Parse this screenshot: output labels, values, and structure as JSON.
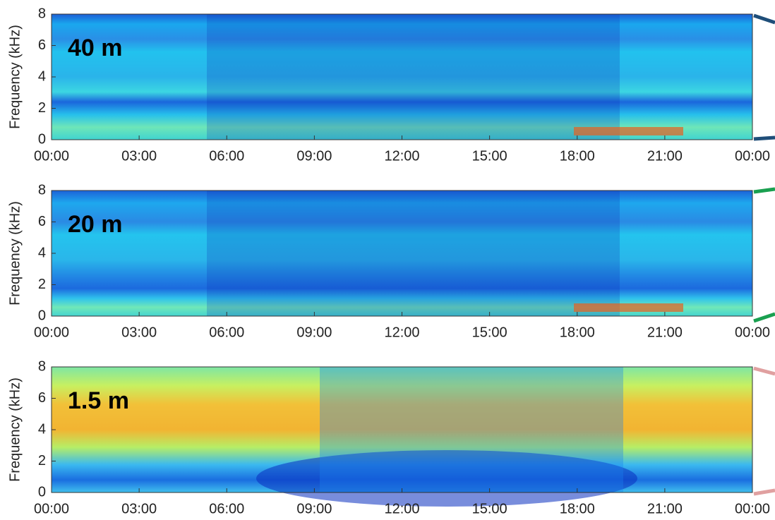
{
  "chart_data": [
    {
      "type": "spectrogram",
      "title": "40 m",
      "ylabel": "Frequency (kHz)",
      "xlim": [
        0,
        24
      ],
      "ylim": [
        0,
        8
      ],
      "xticks": [
        {
          "value": 0,
          "label": "00:00"
        },
        {
          "value": 3,
          "label": "03:00"
        },
        {
          "value": 6,
          "label": "06:00"
        },
        {
          "value": 9,
          "label": "09:00"
        },
        {
          "value": 12,
          "label": "12:00"
        },
        {
          "value": 15,
          "label": "15:00"
        },
        {
          "value": 18,
          "label": "18:00"
        },
        {
          "value": 21,
          "label": "21:00"
        },
        {
          "value": 24,
          "label": "00:00"
        }
      ],
      "yticks": [
        0,
        2,
        4,
        6,
        8
      ]
    },
    {
      "type": "spectrogram",
      "title": "20 m",
      "ylabel": "Frequency (kHz)",
      "xlim": [
        0,
        24
      ],
      "ylim": [
        0,
        8
      ],
      "xticks": [
        {
          "value": 0,
          "label": "00:00"
        },
        {
          "value": 3,
          "label": "03:00"
        },
        {
          "value": 6,
          "label": "06:00"
        },
        {
          "value": 9,
          "label": "09:00"
        },
        {
          "value": 12,
          "label": "12:00"
        },
        {
          "value": 15,
          "label": "15:00"
        },
        {
          "value": 18,
          "label": "18:00"
        },
        {
          "value": 21,
          "label": "21:00"
        },
        {
          "value": 24,
          "label": "00:00"
        }
      ],
      "yticks": [
        0,
        2,
        4,
        6,
        8
      ]
    },
    {
      "type": "spectrogram",
      "title": "1.5 m",
      "ylabel": "Frequency (kHz)",
      "xlim": [
        0,
        24
      ],
      "ylim": [
        0,
        8
      ],
      "xticks": [
        {
          "value": 0,
          "label": "00:00"
        },
        {
          "value": 3,
          "label": "03:00"
        },
        {
          "value": 6,
          "label": "06:00"
        },
        {
          "value": 9,
          "label": "09:00"
        },
        {
          "value": 12,
          "label": "12:00"
        },
        {
          "value": 15,
          "label": "15:00"
        },
        {
          "value": 18,
          "label": "18:00"
        },
        {
          "value": 21,
          "label": "21:00"
        },
        {
          "value": 24,
          "label": "00:00"
        }
      ],
      "yticks": [
        0,
        2,
        4,
        6,
        8
      ]
    }
  ]
}
